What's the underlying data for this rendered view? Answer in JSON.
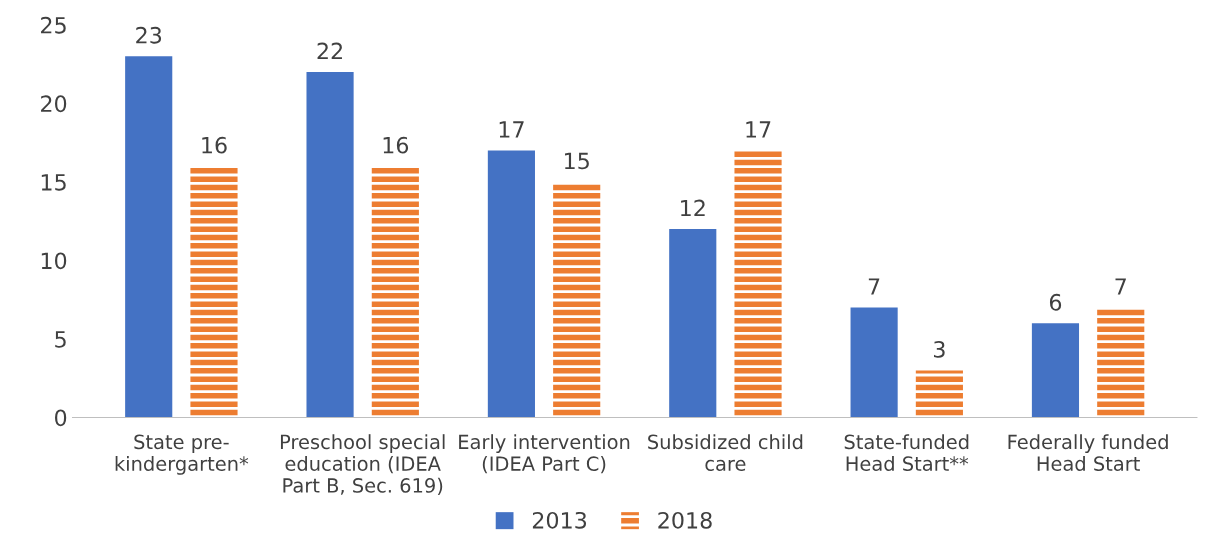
{
  "chart_data": {
    "type": "bar",
    "categories": [
      "State pre-\nkindergarten*",
      "Preschool special\neducation (IDEA\nPart B, Sec. 619)",
      "Early intervention\n(IDEA Part C)",
      "Subsidized child\ncare",
      "State-funded\nHead Start**",
      "Federally funded\nHead Start"
    ],
    "series": [
      {
        "name": "2013",
        "color": "#4472c4",
        "values": [
          23,
          22,
          17,
          12,
          7,
          6
        ]
      },
      {
        "name": "2018",
        "color": "#ed7d31",
        "values": [
          16,
          16,
          15,
          17,
          3,
          7
        ]
      }
    ],
    "ylim": [
      0,
      25
    ],
    "yticks": [
      0,
      5,
      10,
      15,
      20,
      25
    ],
    "grid": false,
    "legend": "bottom",
    "data_labels": true
  }
}
